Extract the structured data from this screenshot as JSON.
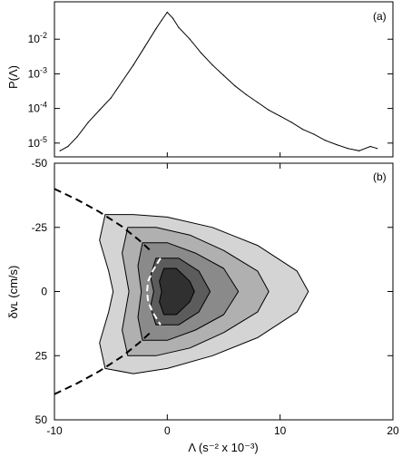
{
  "chart_data": [
    {
      "type": "line",
      "panel_label": "(a)",
      "ylabel": "P(Λ)",
      "yscale": "log",
      "ylim": [
        4e-06,
        0.12
      ],
      "xlim": [
        -10,
        20
      ],
      "y_ticks": [
        {
          "value": 1e-05,
          "base": "10",
          "exp": "-5"
        },
        {
          "value": 0.0001,
          "base": "10",
          "exp": "-4"
        },
        {
          "value": 0.001,
          "base": "10",
          "exp": "-3"
        },
        {
          "value": 0.01,
          "base": "10",
          "exp": "-2"
        }
      ],
      "series": [
        {
          "x": [
            -9.5,
            -8.8,
            -8.0,
            -7.0,
            -6.0,
            -5.0,
            -4.0,
            -3.0,
            -2.0,
            -1.0,
            -0.5,
            0.0,
            0.5,
            1.0,
            2.0,
            3.0,
            4.0,
            5.0,
            6.0,
            7.0,
            8.0,
            9.0,
            10.0,
            11.0,
            12.0,
            13.0,
            14.0,
            15.0,
            16.0,
            17.0,
            18.0,
            18.6
          ],
          "y": [
            6e-06,
            8e-06,
            1.5e-05,
            4e-05,
            9e-05,
            0.0002,
            0.0006,
            0.0018,
            0.006,
            0.02,
            0.035,
            0.06,
            0.04,
            0.022,
            0.01,
            0.004,
            0.0018,
            0.0009,
            0.00045,
            0.00025,
            0.00015,
            9e-05,
            6e-05,
            4e-05,
            2.5e-05,
            1.8e-05,
            1.2e-05,
            9e-06,
            7e-06,
            6e-06,
            8e-06,
            7e-06
          ]
        }
      ]
    },
    {
      "type": "heatmap",
      "panel_label": "(b)",
      "xlabel": "Λ (s⁻² x 10⁻³)",
      "ylabel": "δvʟ (cm/s)",
      "xlim": [
        -10,
        20
      ],
      "ylim": [
        50,
        -50
      ],
      "x_ticks": [
        -10,
        0,
        10,
        20
      ],
      "y_ticks": [
        -50,
        -25,
        0,
        25,
        50
      ],
      "contour_levels": [
        {
          "level": 1,
          "fill": "#d4d4d4",
          "points": [
            [
              -5.5,
              -30
            ],
            [
              -3,
              -30
            ],
            [
              0,
              -29
            ],
            [
              4,
              -25
            ],
            [
              8,
              -18
            ],
            [
              11.5,
              -8
            ],
            [
              12.5,
              0
            ],
            [
              11.5,
              8
            ],
            [
              8,
              18
            ],
            [
              4,
              25
            ],
            [
              0,
              30
            ],
            [
              -3,
              32
            ],
            [
              -5.5,
              30
            ],
            [
              -6,
              20
            ],
            [
              -5.2,
              8
            ],
            [
              -4.8,
              0
            ],
            [
              -5.2,
              -8
            ],
            [
              -6,
              -20
            ]
          ]
        },
        {
          "level": 2,
          "fill": "#b0b0b0",
          "points": [
            [
              -3.5,
              -25
            ],
            [
              -1,
              -25
            ],
            [
              2,
              -22
            ],
            [
              5,
              -16
            ],
            [
              8,
              -8
            ],
            [
              9,
              0
            ],
            [
              8,
              8
            ],
            [
              5,
              16
            ],
            [
              2,
              22
            ],
            [
              -1,
              25
            ],
            [
              -3.5,
              25
            ],
            [
              -4,
              15
            ],
            [
              -3.6,
              5
            ],
            [
              -3.4,
              0
            ],
            [
              -3.6,
              -5
            ],
            [
              -4,
              -15
            ]
          ]
        },
        {
          "level": 3,
          "fill": "#8a8a8a",
          "points": [
            [
              -2.2,
              -19
            ],
            [
              0,
              -19
            ],
            [
              2.5,
              -15
            ],
            [
              5,
              -9
            ],
            [
              6.3,
              0
            ],
            [
              5,
              9
            ],
            [
              2.5,
              15
            ],
            [
              0,
              19
            ],
            [
              -2.2,
              19
            ],
            [
              -2.6,
              10
            ],
            [
              -2.3,
              0
            ],
            [
              -2.6,
              -10
            ]
          ]
        },
        {
          "level": 4,
          "fill": "#5c5c5c",
          "points": [
            [
              -1,
              -13
            ],
            [
              1,
              -13
            ],
            [
              2.8,
              -8
            ],
            [
              3.8,
              0
            ],
            [
              2.8,
              8
            ],
            [
              1,
              13
            ],
            [
              -1,
              13
            ],
            [
              -1.5,
              6
            ],
            [
              -1.2,
              0
            ],
            [
              -1.5,
              -6
            ]
          ]
        },
        {
          "level": 5,
          "fill": "#303030",
          "points": [
            [
              -0.3,
              -9
            ],
            [
              0.8,
              -9
            ],
            [
              2,
              -4
            ],
            [
              2.4,
              0
            ],
            [
              2,
              4
            ],
            [
              0.8,
              9
            ],
            [
              -0.3,
              9
            ],
            [
              -0.7,
              4
            ],
            [
              -0.5,
              0
            ],
            [
              -0.7,
              -4
            ]
          ]
        }
      ],
      "boundary_curve": {
        "x": [
          -10,
          -8,
          -6,
          -4,
          -2.5,
          -1.5
        ],
        "y_upper": [
          -40,
          -35.8,
          -31,
          -25.3,
          -20,
          -16
        ]
      },
      "inner_curve": {
        "x": [
          -0.6,
          -1.3,
          -1.7,
          -1.8,
          -1.7,
          -1.3,
          -0.6
        ],
        "y": [
          -13,
          -8,
          -4,
          0,
          4,
          8,
          13
        ]
      }
    }
  ]
}
